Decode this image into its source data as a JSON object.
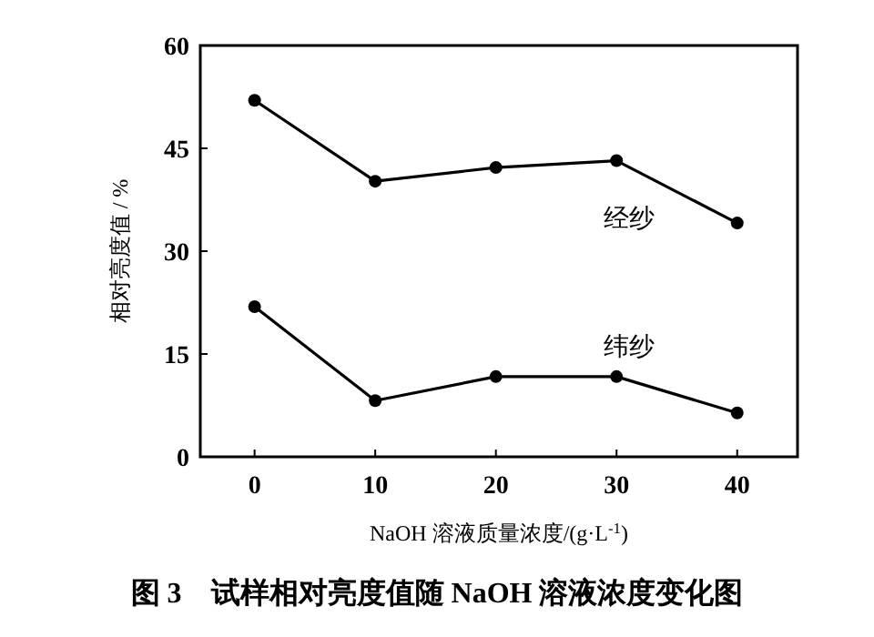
{
  "chart_data": {
    "type": "line",
    "title": "图 3　试样相对亮度值随 NaOH 溶液浓度变化图",
    "xlabel": "NaOH 溶液质量浓度/(g·L$^{-1}$)",
    "ylabel": "相对亮度值 / %",
    "x": [
      0,
      10,
      20,
      30,
      40
    ],
    "series": [
      {
        "name": "经纱",
        "color": "#000000",
        "values": [
          52.0,
          40.2,
          42.2,
          43.2,
          34.1
        ]
      },
      {
        "name": "纬纱",
        "color": "#000000",
        "values": [
          21.9,
          8.2,
          11.7,
          11.7,
          6.4
        ]
      }
    ],
    "xlim": [
      -4.5,
      45
    ],
    "xticks": [
      0,
      10,
      20,
      30,
      40
    ],
    "ylim": [
      0,
      60
    ],
    "yticks": [
      0,
      15,
      30,
      45,
      60
    ],
    "marker": "circle",
    "line_style": "solid",
    "grid": false
  }
}
